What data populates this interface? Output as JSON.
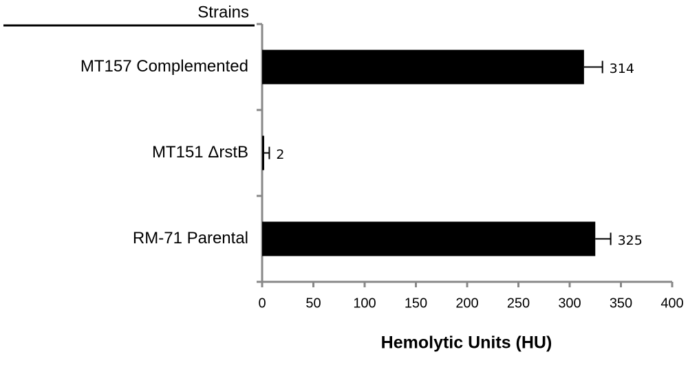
{
  "chart_data": {
    "type": "hbar",
    "y_label": "Strains",
    "x_label": "Hemolytic Units (HU)",
    "categories": [
      "MT157 Complemented",
      "MT151 ΔrstB",
      "RM-71 Parental"
    ],
    "values": [
      314,
      2,
      325
    ],
    "errors": [
      18,
      5,
      15
    ],
    "color": "#000000",
    "xlim": [
      0,
      400
    ],
    "xticks": [
      0,
      50,
      100,
      150,
      200,
      250,
      300,
      350,
      400
    ]
  }
}
